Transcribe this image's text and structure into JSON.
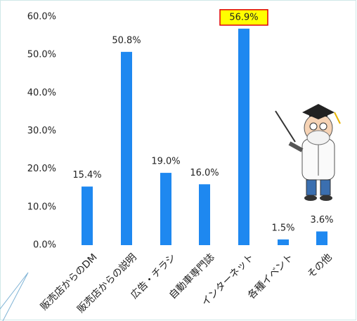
{
  "chart_data": {
    "type": "bar",
    "categories": [
      "販売店からのDM",
      "販売店からの説明",
      "広告・チラシ",
      "自動車専門誌",
      "インターネット",
      "各種イベント",
      "その他"
    ],
    "values": [
      15.4,
      50.8,
      19.0,
      16.0,
      56.9,
      1.5,
      3.6
    ],
    "value_labels": [
      "15.4%",
      "50.8%",
      "19.0%",
      "16.0%",
      "56.9%",
      "1.5%",
      "3.6%"
    ],
    "color": "#1e88f0",
    "highlight_index": 4,
    "ylim": [
      0,
      60
    ],
    "yticks": [
      {
        "value": 0,
        "label": "0.0%"
      },
      {
        "value": 10,
        "label": "10.0%"
      },
      {
        "value": 20,
        "label": "20.0%"
      },
      {
        "value": 30,
        "label": "30.0%"
      },
      {
        "value": 40,
        "label": "40.0%"
      },
      {
        "value": 50,
        "label": "50.0%"
      },
      {
        "value": 60,
        "label": "60.0%"
      }
    ],
    "grid": false
  }
}
